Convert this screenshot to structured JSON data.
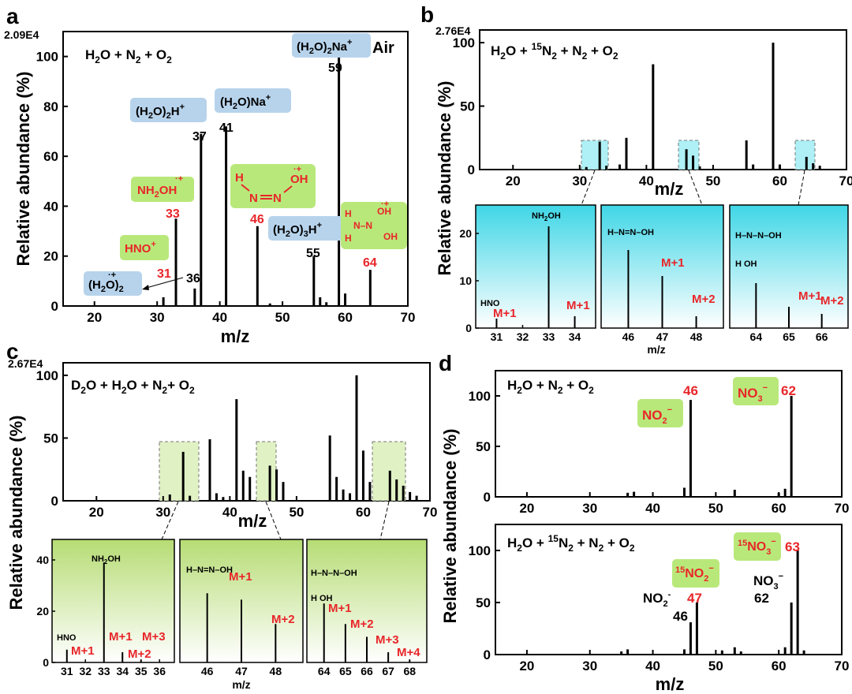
{
  "colors": {
    "ion_label": "#e8262a",
    "blue_box": "#b7d3ec",
    "green_box": "#b9e87a",
    "cyan_box": "#aef0f5",
    "green_inset": "#c4e690",
    "bars": "#000000"
  },
  "chart_data": [
    {
      "panel": "a",
      "type": "bar",
      "title": "",
      "legend": "H2O + N2 + O2",
      "corner_label": "Air",
      "scale_label": "2.09E4",
      "xlabel": "m/z",
      "ylabel": "Relative abundance (%)",
      "xlim": [
        15,
        70
      ],
      "ylim": [
        0,
        110
      ],
      "xticks": [
        "20",
        "30",
        "40",
        "50",
        "60",
        "70"
      ],
      "yticks": [
        "0",
        "20",
        "40",
        "60",
        "80",
        "100"
      ],
      "peaks": [
        {
          "mz": 31,
          "rel": 3.5
        },
        {
          "mz": 33,
          "rel": 35
        },
        {
          "mz": 36,
          "rel": 7
        },
        {
          "mz": 37,
          "rel": 69
        },
        {
          "mz": 41,
          "rel": 72
        },
        {
          "mz": 46,
          "rel": 32
        },
        {
          "mz": 48,
          "rel": 1
        },
        {
          "mz": 55,
          "rel": 20
        },
        {
          "mz": 56,
          "rel": 3.5
        },
        {
          "mz": 57,
          "rel": 1.5
        },
        {
          "mz": 59,
          "rel": 100
        },
        {
          "mz": 60,
          "rel": 5
        },
        {
          "mz": 64,
          "rel": 14.5
        }
      ],
      "labels": {
        "p31": "31",
        "p33": "33",
        "p36": "36",
        "p37": "37",
        "p41": "41",
        "p46": "46",
        "p55": "55",
        "p59": "59",
        "p64": "64"
      },
      "species": {
        "h2o_cation": "(H2O)2",
        "h2o2h": "(H2O)2H+",
        "h2ona": "(H2O)Na+",
        "h2o3h": "(H2O)3H+",
        "h2o2na": "(H2O)2Na+",
        "hno": "HNO+",
        "nh2oh": "NH2OH",
        "hnnoh": "H–N=N–OH",
        "hnnoh2": "HN(H)–N(OH)2"
      }
    },
    {
      "panel": "b",
      "type": "bar",
      "legend": "H2O + 15N2 + N2 + O2",
      "scale_label": "2.76E4",
      "xlabel": "m/z",
      "ylabel": "Relative abundance (%)",
      "xlim": [
        15,
        70
      ],
      "ylim": [
        0,
        110
      ],
      "xticks": [
        "20",
        "30",
        "40",
        "50",
        "60",
        "70"
      ],
      "yticks": [
        "0",
        "50",
        "100"
      ],
      "peaks": [
        {
          "mz": 31,
          "rel": 2
        },
        {
          "mz": 33,
          "rel": 22
        },
        {
          "mz": 34,
          "rel": 3
        },
        {
          "mz": 36,
          "rel": 4
        },
        {
          "mz": 37,
          "rel": 25
        },
        {
          "mz": 41,
          "rel": 83
        },
        {
          "mz": 46,
          "rel": 16
        },
        {
          "mz": 47,
          "rel": 11
        },
        {
          "mz": 48,
          "rel": 2.5
        },
        {
          "mz": 55,
          "rel": 23
        },
        {
          "mz": 56,
          "rel": 4
        },
        {
          "mz": 59,
          "rel": 100
        },
        {
          "mz": 60,
          "rel": 4
        },
        {
          "mz": 64,
          "rel": 10
        },
        {
          "mz": 65,
          "rel": 5
        },
        {
          "mz": 66,
          "rel": 3
        }
      ],
      "insets": [
        {
          "xticks": [
            "31",
            "32",
            "33",
            "34"
          ],
          "peaks": [
            {
              "mz": 31,
              "rel": 2
            },
            {
              "mz": 33,
              "rel": 21.5
            },
            {
              "mz": 34,
              "rel": 2.5
            }
          ],
          "marks": [
            "HNO",
            "M+1",
            "NH2OH",
            "M+1"
          ]
        },
        {
          "xticks": [
            "46",
            "47",
            "48"
          ],
          "peaks": [
            {
              "mz": 46,
              "rel": 16.5
            },
            {
              "mz": 47,
              "rel": 11
            },
            {
              "mz": 48,
              "rel": 2.5
            }
          ],
          "marks": [
            "M+1",
            "M+2"
          ]
        },
        {
          "xticks": [
            "64",
            "65",
            "66"
          ],
          "peaks": [
            {
              "mz": 64,
              "rel": 9.5
            },
            {
              "mz": 65,
              "rel": 4.5
            },
            {
              "mz": 66,
              "rel": 3
            }
          ],
          "marks": [
            "M+1",
            "M+2"
          ]
        }
      ],
      "inset_yticks": [
        "0",
        "10",
        "20"
      ],
      "inset_xlabel": "m/z"
    },
    {
      "panel": "c",
      "type": "bar",
      "legend": "D2O + H2O + N2+ O2",
      "scale_label": "2.67E4",
      "xlabel": "m/z",
      "ylabel": "Relative abundance (%)",
      "xlim": [
        15,
        70
      ],
      "ylim": [
        0,
        110
      ],
      "xticks": [
        "20",
        "30",
        "40",
        "50",
        "60",
        "70"
      ],
      "yticks": [
        "0",
        "50",
        "100"
      ],
      "peaks": [
        {
          "mz": 31,
          "rel": 5
        },
        {
          "mz": 33,
          "rel": 39
        },
        {
          "mz": 34,
          "rel": 4
        },
        {
          "mz": 37,
          "rel": 49
        },
        {
          "mz": 38,
          "rel": 6
        },
        {
          "mz": 39,
          "rel": 3
        },
        {
          "mz": 41,
          "rel": 81
        },
        {
          "mz": 42,
          "rel": 24
        },
        {
          "mz": 43,
          "rel": 19
        },
        {
          "mz": 46,
          "rel": 28
        },
        {
          "mz": 47,
          "rel": 25
        },
        {
          "mz": 48,
          "rel": 15
        },
        {
          "mz": 55,
          "rel": 52
        },
        {
          "mz": 56,
          "rel": 19
        },
        {
          "mz": 57,
          "rel": 9
        },
        {
          "mz": 58,
          "rel": 6
        },
        {
          "mz": 59,
          "rel": 100
        },
        {
          "mz": 60,
          "rel": 40
        },
        {
          "mz": 61,
          "rel": 15
        },
        {
          "mz": 64,
          "rel": 24
        },
        {
          "mz": 65,
          "rel": 17
        },
        {
          "mz": 66,
          "rel": 12
        },
        {
          "mz": 67,
          "rel": 7
        },
        {
          "mz": 68,
          "rel": 4
        }
      ],
      "insets": [
        {
          "xticks": [
            "31",
            "32",
            "33",
            "34",
            "35",
            "36"
          ],
          "peaks": [
            {
              "mz": 31,
              "rel": 5
            },
            {
              "mz": 33,
              "rel": 39
            },
            {
              "mz": 34,
              "rel": 4
            },
            {
              "mz": 35,
              "rel": 1
            }
          ],
          "marks": [
            "HNO",
            "M+1",
            "NH2OH",
            "M+1",
            "M+2",
            "M+3"
          ]
        },
        {
          "xticks": [
            "46",
            "47",
            "48"
          ],
          "peaks": [
            {
              "mz": 46,
              "rel": 27
            },
            {
              "mz": 47,
              "rel": 24.5
            },
            {
              "mz": 48,
              "rel": 15
            }
          ],
          "marks": [
            "M+1",
            "M+2"
          ]
        },
        {
          "xticks": [
            "64",
            "65",
            "66",
            "67",
            "68"
          ],
          "peaks": [
            {
              "mz": 64,
              "rel": 23
            },
            {
              "mz": 65,
              "rel": 15
            },
            {
              "mz": 66,
              "rel": 10
            },
            {
              "mz": 67,
              "rel": 4
            },
            {
              "mz": 68,
              "rel": 1
            }
          ],
          "marks": [
            "M+1",
            "M+2",
            "M+3",
            "M+4"
          ]
        }
      ],
      "inset_yticks": [
        "0",
        "20",
        "40"
      ],
      "inset_xlabel": "m/z"
    },
    {
      "panel": "d-top",
      "type": "bar",
      "legend": "H2O + N2 + O2",
      "xlabel": "m/z",
      "ylabel": "Relative abundance (%)",
      "xlim": [
        15,
        70
      ],
      "ylim": [
        0,
        125
      ],
      "xticks": [
        "20",
        "30",
        "40",
        "50",
        "60",
        "70"
      ],
      "yticks": [
        "0",
        "50",
        "100"
      ],
      "peaks": [
        {
          "mz": 36,
          "rel": 4
        },
        {
          "mz": 37,
          "rel": 5
        },
        {
          "mz": 45,
          "rel": 9
        },
        {
          "mz": 46,
          "rel": 96
        },
        {
          "mz": 53,
          "rel": 7
        },
        {
          "mz": 60,
          "rel": 4
        },
        {
          "mz": 61,
          "rel": 8
        },
        {
          "mz": 62,
          "rel": 100
        }
      ],
      "labels": {
        "p46": "46",
        "p62": "62"
      },
      "species": {
        "no2": "NO2−",
        "no3": "NO3−"
      }
    },
    {
      "panel": "d-bottom",
      "type": "bar",
      "legend": "H2O + 15N2 + N2 + O2",
      "xlabel": "m/z",
      "ylabel": "Relative abundance (%)",
      "xlim": [
        15,
        70
      ],
      "ylim": [
        0,
        125
      ],
      "xticks": [
        "20",
        "30",
        "40",
        "50",
        "60",
        "70"
      ],
      "yticks": [
        "0",
        "50",
        "100"
      ],
      "peaks": [
        {
          "mz": 35,
          "rel": 3
        },
        {
          "mz": 36,
          "rel": 5
        },
        {
          "mz": 45,
          "rel": 5
        },
        {
          "mz": 46,
          "rel": 31
        },
        {
          "mz": 47,
          "rel": 50
        },
        {
          "mz": 51,
          "rel": 4
        },
        {
          "mz": 53,
          "rel": 7
        },
        {
          "mz": 54,
          "rel": 3
        },
        {
          "mz": 61,
          "rel": 7
        },
        {
          "mz": 62,
          "rel": 50
        },
        {
          "mz": 63,
          "rel": 100
        },
        {
          "mz": 64,
          "rel": 4
        }
      ],
      "labels": {
        "p46": "46",
        "p47": "47",
        "p62": "62",
        "p63": "63"
      },
      "species": {
        "no2": "NO2-",
        "no3": "NO3−",
        "n15o2": "15NO2−",
        "n15o3": "15NO3−"
      }
    }
  ]
}
